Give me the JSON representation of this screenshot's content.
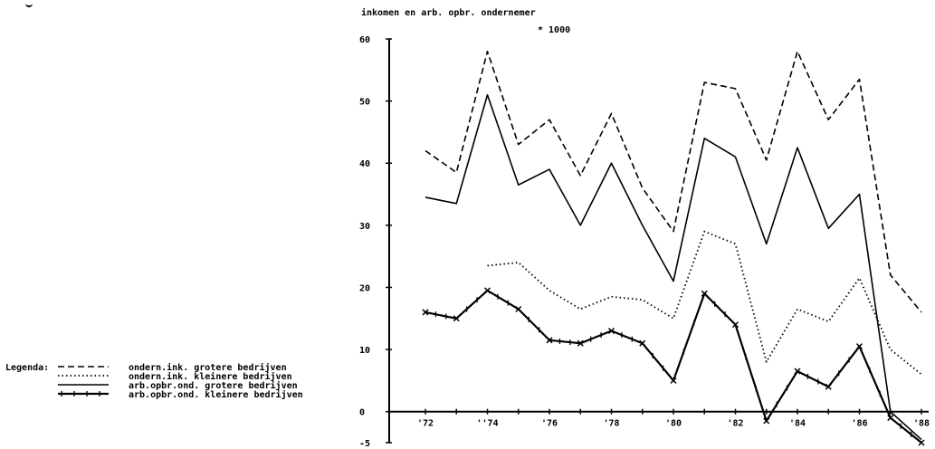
{
  "chart_data": {
    "type": "line",
    "title": "inkomen en arb. opbr. ondernemer",
    "subtitle": "* 1000",
    "xlabel": "",
    "ylabel": "",
    "ylim": [
      -5,
      60
    ],
    "xlim": [
      1972,
      1988
    ],
    "y_ticks": [
      "60",
      "50",
      "40",
      "30",
      "20",
      "10",
      "0",
      "-5"
    ],
    "x_ticks": [
      "'72",
      "''74",
      "'76",
      "'78",
      "'80",
      "'82",
      "'84",
      "'86",
      "'88"
    ],
    "grid": false,
    "legend_position": "bottom-left",
    "legend_title": "Legenda:",
    "series": [
      {
        "name": "ondern.ink. grotere bedrijven",
        "style": "dashed",
        "points": [
          [
            1972,
            42
          ],
          [
            1973,
            38.5
          ],
          [
            1974,
            58
          ],
          [
            1975,
            43
          ],
          [
            1976,
            47
          ],
          [
            1977,
            38
          ],
          [
            1978,
            48
          ],
          [
            1979,
            36
          ],
          [
            1980,
            29
          ],
          [
            1981,
            53
          ],
          [
            1982,
            52
          ],
          [
            1983,
            40.5
          ],
          [
            1984,
            58
          ],
          [
            1985,
            47
          ],
          [
            1986,
            53.5
          ],
          [
            1987,
            22
          ],
          [
            1988,
            16
          ]
        ]
      },
      {
        "name": "ondern.ink. kleinere bedrijven",
        "style": "dotted",
        "points": [
          [
            1974,
            23.5
          ],
          [
            1975,
            24
          ],
          [
            1976,
            19.5
          ],
          [
            1977,
            16.5
          ],
          [
            1978,
            18.5
          ],
          [
            1979,
            18
          ],
          [
            1980,
            15
          ],
          [
            1981,
            29
          ],
          [
            1982,
            27
          ],
          [
            1983,
            8
          ],
          [
            1984,
            16.5
          ],
          [
            1985,
            14.5
          ],
          [
            1986,
            21.5
          ],
          [
            1987,
            10
          ],
          [
            1988,
            6
          ]
        ]
      },
      {
        "name": "arb.opbr.ond. grotere bedrijven",
        "style": "solid",
        "points": [
          [
            1972,
            34.5
          ],
          [
            1973,
            33.5
          ],
          [
            1974,
            51
          ],
          [
            1975,
            36.5
          ],
          [
            1976,
            39
          ],
          [
            1977,
            30
          ],
          [
            1978,
            40
          ],
          [
            1979,
            30
          ],
          [
            1980,
            21
          ],
          [
            1981,
            44
          ],
          [
            1982,
            41
          ],
          [
            1983,
            27
          ],
          [
            1984,
            42.5
          ],
          [
            1985,
            29.5
          ],
          [
            1986,
            35
          ],
          [
            1987,
            0
          ],
          [
            1988,
            -4.5
          ]
        ]
      },
      {
        "name": "arb.opbr.ond. kleinere bedrijven",
        "style": "solid-marked",
        "points": [
          [
            1972,
            16
          ],
          [
            1973,
            15
          ],
          [
            1974,
            19.5
          ],
          [
            1975,
            16.5
          ],
          [
            1976,
            11.5
          ],
          [
            1977,
            11
          ],
          [
            1978,
            13
          ],
          [
            1979,
            11
          ],
          [
            1980,
            5
          ],
          [
            1981,
            19
          ],
          [
            1982,
            14
          ],
          [
            1983,
            -1.5
          ],
          [
            1984,
            6.5
          ],
          [
            1985,
            4
          ],
          [
            1986,
            10.5
          ],
          [
            1987,
            -1
          ],
          [
            1988,
            -5
          ]
        ]
      }
    ]
  }
}
